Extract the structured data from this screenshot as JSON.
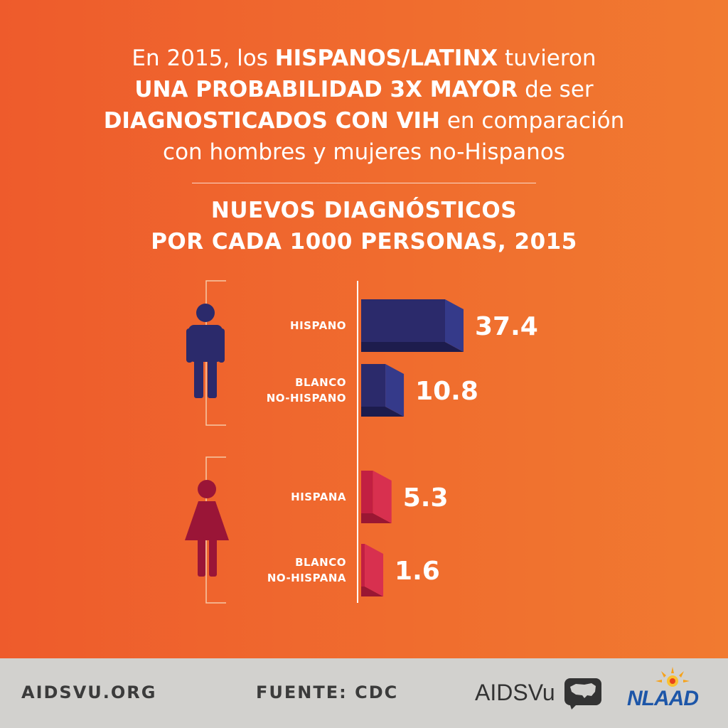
{
  "headline": {
    "l1a": "En 2015, los ",
    "l1b": "HISPANOS/LATINX",
    "l1c": " tuvieron",
    "l2a": "UNA PROBABILIDAD 3X MAYOR",
    "l2b": " de ser",
    "l3a": "DIAGNOSTICADOS CON VIH",
    "l3b": " en comparación",
    "l4": "con hombres y mujeres no-Hispanos"
  },
  "chart_data": {
    "type": "bar",
    "orientation": "horizontal",
    "title": "NUEVOS DIAGNÓSTICOS POR CADA 1000 PERSONAS, 2015",
    "title_lines": [
      "NUEVOS DIAGNÓSTICOS",
      "POR CADA 1000 PERSONAS, 2015"
    ],
    "groups": [
      {
        "icon": "man-icon",
        "bars": [
          {
            "label_lines": [
              "HISPANO"
            ],
            "value": 37.4,
            "display": "37.4"
          },
          {
            "label_lines": [
              "BLANCO",
              "NO-HISPANO"
            ],
            "value": 10.8,
            "display": "10.8"
          }
        ]
      },
      {
        "icon": "woman-icon",
        "bars": [
          {
            "label_lines": [
              "HISPANA"
            ],
            "value": 5.3,
            "display": "5.3"
          },
          {
            "label_lines": [
              "BLANCO",
              "NO-HISPANA"
            ],
            "value": 1.6,
            "display": "1.6"
          }
        ]
      }
    ],
    "colors": {
      "man": "#2b2a6b",
      "man_dark": "#1d1c4d",
      "man_side": "#353a8a",
      "woman": "#c21f42",
      "woman_dark": "#9a1733",
      "woman_side": "#d8304f",
      "man_icon": "#2b2a6b",
      "woman_icon": "#9a1537"
    }
  },
  "footer": {
    "url": "AIDSVU.ORG",
    "source": "FUENTE: CDC",
    "logo1": "AIDSVu",
    "logo1_icon": "usa-map-icon",
    "logo2": "NLAAD",
    "logo2_icon": "sun-icon"
  }
}
